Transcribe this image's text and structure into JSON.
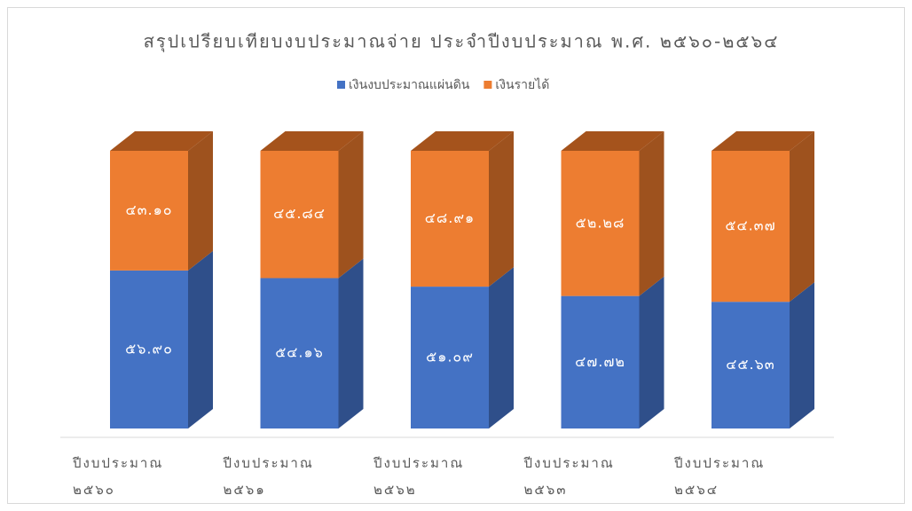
{
  "chart_data": {
    "type": "bar",
    "stacked": true,
    "three_d": true,
    "title": "สรุปเปรียบเทียบงบประมาณจ่าย ประจำปีงบประมาณ พ.ศ. ๒๕๖๐-๒๕๖๔",
    "categories": [
      "ปีงบประมาณ ๒๕๖๐",
      "ปีงบประมาณ ๒๕๖๑",
      "ปีงบประมาณ ๒๕๖๒",
      "ปีงบประมาณ ๒๕๖๓",
      "ปีงบประมาณ ๒๕๖๔"
    ],
    "series": [
      {
        "name": "เงินงบประมาณแผ่นดิน",
        "color": "#4472c4",
        "side_color": "#2f4f8a",
        "values": [
          56.9,
          54.16,
          51.09,
          47.72,
          45.63
        ],
        "value_labels": [
          "๕๖.๙๐",
          "๕๔.๑๖",
          "๕๑.๐๙",
          "๔๗.๗๒",
          "๔๕.๖๓"
        ]
      },
      {
        "name": "เงินรายได้",
        "color": "#ed7d31",
        "side_color": "#9e521e",
        "top_color": "#a5531c",
        "values": [
          43.1,
          45.84,
          48.91,
          52.28,
          54.37
        ],
        "value_labels": [
          "๔๓.๑๐",
          "๔๕.๘๔",
          "๔๘.๙๑",
          "๕๒.๒๘",
          "๕๔.๓๗"
        ]
      }
    ],
    "legend": "top"
  }
}
